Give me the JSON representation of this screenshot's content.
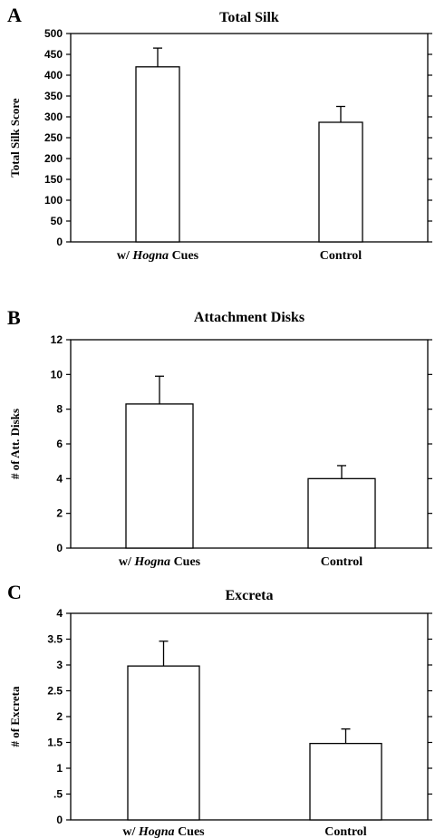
{
  "chart_data": [
    {
      "panel": "A",
      "type": "bar",
      "title": "Total Silk",
      "ylabel": "Total Silk Score",
      "xlabel": "",
      "categories": [
        {
          "pre": "w/ ",
          "italic": "Hogna",
          "post": " Cues"
        },
        {
          "pre": "Control",
          "italic": "",
          "post": ""
        }
      ],
      "values": [
        420,
        287
      ],
      "errors": [
        45,
        38
      ],
      "ylim": [
        0,
        500
      ],
      "yticks": [
        0,
        50,
        100,
        150,
        200,
        250,
        300,
        350,
        400,
        450,
        500
      ],
      "ytick_labels": [
        "0",
        "50",
        "100",
        "150",
        "200",
        "250",
        "300",
        "350",
        "400",
        "450",
        "500"
      ],
      "grid": false,
      "colors": {
        "bar_fill": "#ffffff",
        "bar_stroke": "#000000"
      }
    },
    {
      "panel": "B",
      "type": "bar",
      "title": "Attachment Disks",
      "ylabel": "# of Att. Disks",
      "xlabel": "",
      "categories": [
        {
          "pre": "w/ ",
          "italic": "Hogna",
          "post": " Cues"
        },
        {
          "pre": "Control",
          "italic": "",
          "post": ""
        }
      ],
      "values": [
        8.3,
        4.0
      ],
      "errors": [
        1.6,
        0.75
      ],
      "ylim": [
        0,
        12
      ],
      "yticks": [
        0,
        2,
        4,
        6,
        8,
        10,
        12
      ],
      "ytick_labels": [
        "0",
        "2",
        "4",
        "6",
        "8",
        "10",
        "12"
      ],
      "grid": false,
      "colors": {
        "bar_fill": "#ffffff",
        "bar_stroke": "#000000"
      }
    },
    {
      "panel": "C",
      "type": "bar",
      "title": "Excreta",
      "ylabel": "# of Excreta",
      "xlabel": "",
      "categories": [
        {
          "pre": "w/ ",
          "italic": "Hogna",
          "post": " Cues"
        },
        {
          "pre": "Control",
          "italic": "",
          "post": ""
        }
      ],
      "values": [
        2.98,
        1.48
      ],
      "errors": [
        0.48,
        0.28
      ],
      "ylim": [
        0,
        4
      ],
      "yticks": [
        0,
        0.5,
        1,
        1.5,
        2,
        2.5,
        3,
        3.5,
        4
      ],
      "ytick_labels": [
        "0",
        ".5",
        "1",
        "1.5",
        "2",
        "2.5",
        "3",
        "3.5",
        "4"
      ],
      "grid": false,
      "colors": {
        "bar_fill": "#ffffff",
        "bar_stroke": "#000000"
      }
    }
  ]
}
